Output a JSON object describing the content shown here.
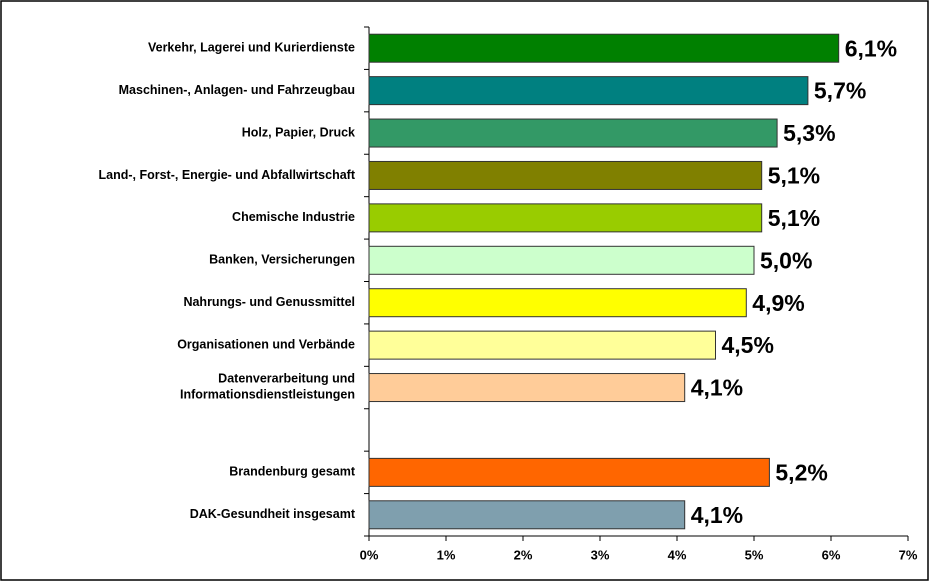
{
  "chart_data": {
    "type": "bar",
    "orientation": "horizontal",
    "categories": [
      "Verkehr, Lagerei und Kurierdienste",
      "Maschinen-, Anlagen- und Fahrzeugbau",
      "Holz, Papier, Druck",
      "Land-, Forst-,  Energie- und Abfallwirtschaft",
      "Chemische Industrie",
      "Banken, Versicherungen",
      "Nahrungs- und Genussmittel",
      "Organisationen und Verbände",
      "Datenverarbeitung und\nInformationsdienstleistungen",
      null,
      "Brandenburg gesamt",
      "DAK-Gesundheit insgesamt"
    ],
    "values": [
      6.1,
      5.7,
      5.3,
      5.1,
      5.1,
      5.0,
      4.9,
      4.5,
      4.1,
      null,
      5.2,
      4.1
    ],
    "value_labels": [
      "6,1%",
      "5,7%",
      "5,3%",
      "5,1%",
      "5,1%",
      "5,0%",
      "4,9%",
      "4,5%",
      "4,1%",
      null,
      "5,2%",
      "4,1%"
    ],
    "colors": [
      "#008000",
      "#008080",
      "#339966",
      "#808000",
      "#99cc00",
      "#ccffcc",
      "#ffff00",
      "#ffff99",
      "#ffcc99",
      null,
      "#ff6600",
      "#7f9fae"
    ],
    "xlim": [
      0,
      7
    ],
    "xticks": [
      {
        "value": 0,
        "label": "0%"
      },
      {
        "value": 1,
        "label": "1%"
      },
      {
        "value": 2,
        "label": "2%"
      },
      {
        "value": 3,
        "label": "3%"
      },
      {
        "value": 4,
        "label": "4%"
      },
      {
        "value": 5,
        "label": "5%"
      },
      {
        "value": 6,
        "label": "6%"
      },
      {
        "value": 7,
        "label": "7%"
      }
    ]
  }
}
